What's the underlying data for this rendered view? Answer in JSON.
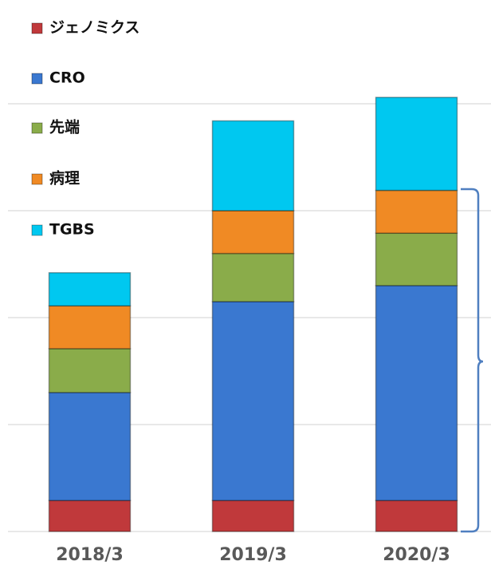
{
  "chart_data": {
    "type": "stacked_bar",
    "categories": [
      "2018/3",
      "2019/3",
      "2020/3"
    ],
    "series": [
      {
        "name": "ジェノミクス",
        "color": "#c0393b",
        "values": [
          29,
          29,
          29
        ]
      },
      {
        "name": "CRO",
        "color": "#3a78d0",
        "values": [
          101,
          186,
          201
        ]
      },
      {
        "name": "先端",
        "color": "#8aac4a",
        "values": [
          41,
          45,
          49
        ]
      },
      {
        "name": "病理",
        "color": "#f08a24",
        "values": [
          40,
          40,
          40
        ]
      },
      {
        "name": "TGBS",
        "color": "#00c8f0",
        "values": [
          31,
          84,
          87
        ]
      }
    ],
    "ylim": [
      0,
      420
    ],
    "yticks": [
      0,
      100,
      200,
      300,
      400
    ],
    "grid": true,
    "legend": "top-left"
  }
}
